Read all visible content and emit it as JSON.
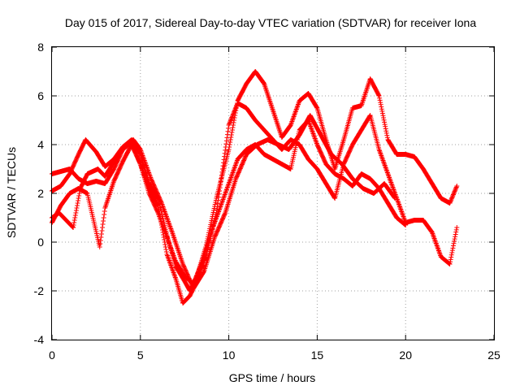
{
  "chart_data": {
    "type": "scatter",
    "title": "Day 015 of 2017, Sidereal Day-to-day VTEC variation (SDTVAR) for receiver Iona",
    "xlabel": "GPS time / hours",
    "ylabel": "SDTVAR / TECUs",
    "xlim": [
      0,
      25
    ],
    "ylim": [
      -4,
      8
    ],
    "xticks": [
      "0",
      "5",
      "10",
      "15",
      "20",
      "25"
    ],
    "yticks": [
      "-4",
      "-2",
      "0",
      "2",
      "4",
      "6",
      "8"
    ],
    "grid": true,
    "legend": "none",
    "marker": "plus",
    "color": "#ff0000",
    "series": [
      {
        "x": [
          0.0,
          0.5,
          1.0,
          1.5,
          1.9,
          2.5,
          3.0,
          3.5,
          4.0,
          4.5,
          5.0,
          5.5,
          6.0,
          6.5,
          7.0,
          7.5,
          7.8,
          8.2,
          8.7,
          9.3,
          10.0,
          10.5,
          11.0,
          11.5,
          12.0,
          12.5,
          13.0,
          13.5,
          14.0,
          14.5,
          15.0,
          15.5,
          16.0,
          16.5,
          17.0,
          17.5,
          18.0,
          18.5,
          19.0,
          19.5,
          20.0,
          20.5,
          21.0,
          21.5,
          22.0,
          22.5,
          22.9
        ],
        "y": [
          2.1,
          2.3,
          2.8,
          3.6,
          4.2,
          3.7,
          3.1,
          3.4,
          3.9,
          4.2,
          3.6,
          2.4,
          1.8,
          0.3,
          -1.0,
          -1.6,
          -2.0,
          -1.4,
          -0.2,
          1.8,
          3.8,
          5.8,
          6.5,
          7.0,
          6.5,
          5.4,
          4.3,
          4.8,
          5.8,
          6.1,
          5.5,
          4.2,
          3.0,
          4.2,
          5.5,
          5.6,
          6.7,
          6.0,
          4.2,
          3.6,
          3.6,
          3.5,
          3.0,
          2.4,
          1.8,
          1.6,
          2.3
        ]
      },
      {
        "x": [
          0.0,
          0.5,
          1.0,
          1.5,
          2.0,
          2.5,
          3.0,
          3.5,
          4.0,
          4.5,
          5.0,
          5.5,
          6.0,
          6.5,
          7.0,
          7.4,
          7.8,
          8.2,
          8.7,
          9.3,
          10.0,
          10.5,
          11.0,
          11.5,
          12.0,
          12.5,
          13.0,
          13.5,
          14.0,
          14.5,
          15.0,
          15.5,
          16.0,
          16.5,
          17.0,
          17.5,
          18.0,
          18.5,
          19.0,
          19.5,
          20.0,
          20.5,
          21.0,
          21.5,
          22.0,
          22.5,
          22.9
        ],
        "y": [
          2.8,
          2.9,
          3.0,
          2.6,
          2.4,
          2.5,
          2.4,
          3.0,
          3.8,
          4.1,
          3.2,
          2.2,
          1.5,
          -0.5,
          -1.5,
          -2.5,
          -2.2,
          -1.6,
          -0.6,
          1.2,
          4.8,
          5.7,
          5.5,
          5.0,
          4.6,
          4.2,
          3.8,
          4.2,
          4.0,
          3.4,
          3.0,
          2.4,
          1.8,
          3.2,
          4.0,
          4.6,
          5.2,
          3.8,
          2.8,
          1.8,
          0.8,
          0.9,
          0.9,
          0.4,
          -0.6,
          -0.9,
          0.6
        ]
      },
      {
        "x": [
          0.0,
          0.5,
          1.0,
          1.5,
          2.0,
          2.7,
          3.0,
          3.5,
          4.0,
          4.5,
          5.0,
          5.5,
          6.0,
          6.5,
          7.0,
          7.5,
          8.0,
          8.5,
          9.0,
          9.5,
          10.0,
          10.5,
          11.0,
          11.5,
          12.0,
          12.5,
          13.0,
          13.5,
          14.0,
          14.5,
          15.0,
          15.5,
          16.0,
          16.5,
          17.0,
          17.5,
          18.0,
          18.5,
          19.0,
          19.5,
          20.0
        ],
        "y": [
          0.8,
          1.5,
          2.0,
          2.2,
          2.0,
          -0.2,
          1.4,
          2.5,
          3.3,
          4.0,
          3.2,
          2.0,
          1.2,
          0.2,
          -0.8,
          -1.4,
          -1.7,
          -0.8,
          0.4,
          1.4,
          2.4,
          3.4,
          3.8,
          4.0,
          3.6,
          3.4,
          3.2,
          3.0,
          4.6,
          5.0,
          4.0,
          3.2,
          2.8,
          2.6,
          2.3,
          2.8,
          2.6,
          2.2,
          1.6,
          1.0,
          0.7
        ]
      },
      {
        "x": [
          0.0,
          0.4,
          0.8,
          1.2,
          1.6,
          2.0,
          2.6,
          3.0,
          3.6,
          4.2,
          4.6,
          5.0,
          5.6,
          6.2,
          6.8,
          7.4,
          8.0,
          8.6,
          9.2,
          9.8,
          10.4,
          11.0,
          11.6,
          12.2,
          12.8,
          13.4,
          14.0,
          14.6,
          15.2,
          15.8,
          16.4,
          17.0,
          17.6,
          18.2,
          18.8,
          19.4
        ],
        "y": [
          1.0,
          1.2,
          0.9,
          0.6,
          2.2,
          2.8,
          3.0,
          2.7,
          3.4,
          4.0,
          4.2,
          3.8,
          2.6,
          1.6,
          0.4,
          -0.9,
          -1.9,
          -1.2,
          0.2,
          1.2,
          2.6,
          3.6,
          4.0,
          4.2,
          4.0,
          3.8,
          4.4,
          5.2,
          4.4,
          3.6,
          3.2,
          2.6,
          2.2,
          2.0,
          2.4,
          1.8
        ]
      }
    ]
  }
}
